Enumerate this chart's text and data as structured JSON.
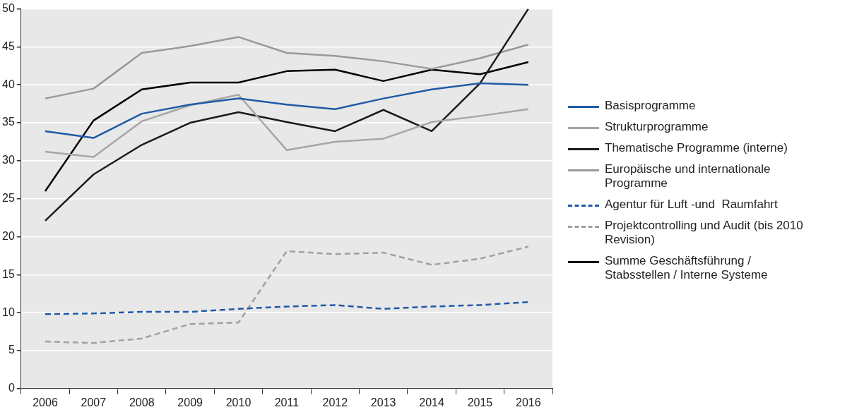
{
  "chart_data": {
    "type": "line",
    "categories": [
      "2006",
      "2007",
      "2008",
      "2009",
      "2010",
      "2011",
      "2012",
      "2013",
      "2014",
      "2015",
      "2016"
    ],
    "ylim": [
      0,
      50
    ],
    "yticks": [
      0,
      5,
      10,
      15,
      20,
      25,
      30,
      35,
      40,
      45,
      50
    ],
    "grid": "y",
    "legend": "right",
    "marker": "none",
    "series": [
      {
        "name": "Basisprogramme",
        "color": "#1f5aa6",
        "line_style": "solid",
        "values": [
          33.9,
          33.0,
          36.2,
          37.4,
          38.2,
          37.4,
          36.8,
          38.2,
          39.4,
          40.2,
          40.0
        ]
      },
      {
        "name": "Strukturprogramme",
        "color": "#a6a6a6",
        "line_style": "solid",
        "values": [
          31.2,
          30.5,
          35.2,
          37.3,
          38.7,
          31.4,
          32.5,
          32.9,
          35.1,
          35.9,
          36.8
        ]
      },
      {
        "name": "Thematische Programme (interne)",
        "color": "#1a1a1a",
        "line_style": "solid",
        "values": [
          22.1,
          28.2,
          32.1,
          35.0,
          36.4,
          35.1,
          33.9,
          36.7,
          33.9,
          40.2,
          50.0
        ]
      },
      {
        "name": "Europäische und internationale Programme",
        "color": "#999999",
        "line_style": "solid",
        "values": [
          38.2,
          39.5,
          44.2,
          45.1,
          46.3,
          44.2,
          43.8,
          43.1,
          42.1,
          43.5,
          45.3
        ]
      },
      {
        "name": "Agentur für Luft -und  Raumfahrt",
        "color": "#1f5aa6",
        "line_style": "dashed",
        "values": [
          9.8,
          9.9,
          10.1,
          10.1,
          10.5,
          10.8,
          11.0,
          10.5,
          10.8,
          11.0,
          11.4
        ]
      },
      {
        "name": "Projektcontrolling und Audit (bis 2010 Revision)",
        "color": "#a0a0a0",
        "line_style": "dashed",
        "values": [
          6.2,
          6.0,
          6.6,
          8.5,
          8.7,
          18.1,
          17.7,
          17.9,
          16.3,
          17.1,
          18.7
        ]
      },
      {
        "name": "Summe Geschäftsführung / Stabsstellen / Interne Systeme",
        "color": "#000000",
        "line_style": "solid",
        "values": [
          26.0,
          35.3,
          39.4,
          40.3,
          40.3,
          41.8,
          42.0,
          40.5,
          42.0,
          41.4,
          43.0
        ]
      }
    ]
  }
}
